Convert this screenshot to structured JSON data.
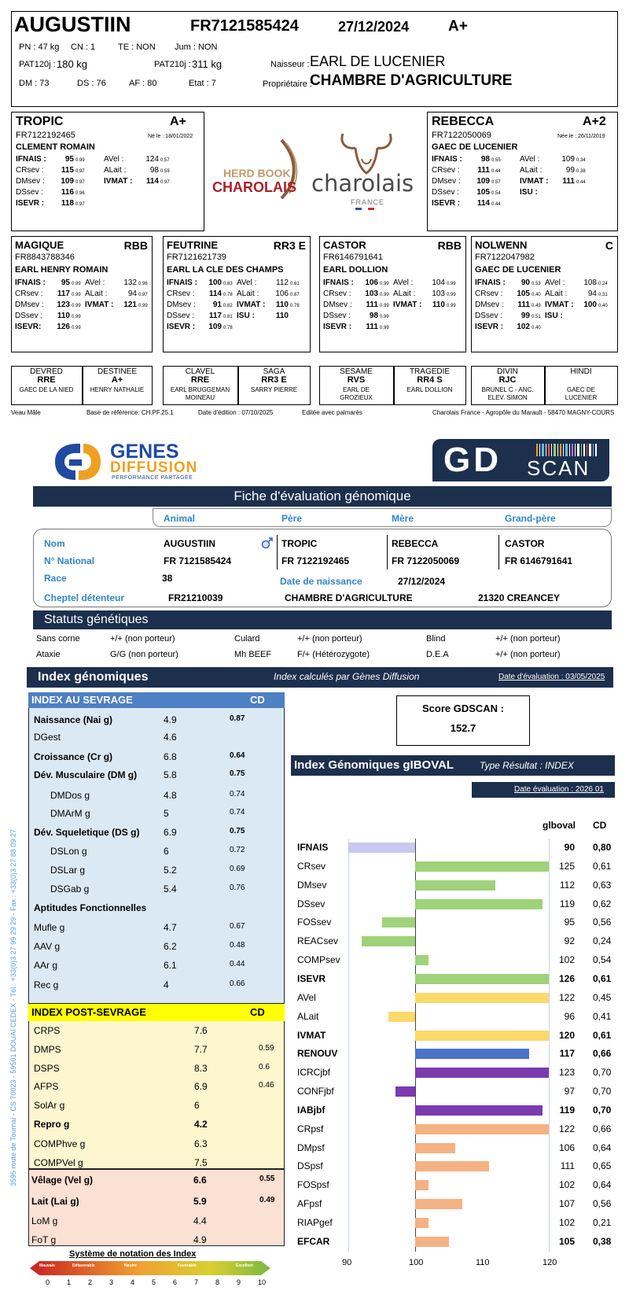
{
  "animal": {
    "name": "AUGUSTIIN",
    "national_id": "FR7121585424",
    "birth_date": "27/12/2024",
    "grade": "A+",
    "pn": "PN : 47 kg",
    "cn": "CN : 1",
    "te": "TE : NON",
    "jum": "Jum : NON",
    "pat120": "PAT120j :",
    "pat120_val": "180 kg",
    "pat210": "PAT210j :",
    "pat210_val": "311 kg",
    "naisseur_label": "Naisseur :",
    "naisseur": "EARL DE LUCENIER",
    "proprietaire_label": "Propriétaire :",
    "proprietaire": "CHAMBRE D'AGRICULTURE",
    "dm": "DM : 73",
    "ds": "DS : 76",
    "af": "AF :  80",
    "etat": "Etat : 7"
  },
  "parents": [
    {
      "key": "pere",
      "name": "TROPIC",
      "grade": "A+",
      "id": "FR7122192465",
      "born": "Né le : 18/01/2022",
      "owner": "CLEMENT ROMAIN",
      "left": [
        [
          "IFNAIS :",
          "95",
          "0.99",
          true
        ],
        [
          "CRsev :",
          "115",
          "0.97",
          false
        ],
        [
          "DMsev :",
          "109",
          "0.97",
          false
        ],
        [
          "DSsev :",
          "116",
          "0.96",
          false
        ],
        [
          "ISEVR :",
          "118",
          "0.97",
          true
        ]
      ],
      "right": [
        [
          "AVel :",
          "124",
          "0.57",
          false
        ],
        [
          "ALait :",
          "98",
          "0.59",
          false
        ],
        [
          "IVMAT :",
          "114",
          "0.97",
          true
        ]
      ]
    },
    {
      "key": "mere",
      "name": "REBECCA",
      "grade": "A+2",
      "id": "FR7122050069",
      "born": "Née le : 26/11/2019",
      "owner": "GAEC DE LUCENIER",
      "left": [
        [
          "IFNAIS :",
          "98",
          "0.55",
          true
        ],
        [
          "CRsev :",
          "111",
          "0.44",
          false
        ],
        [
          "DMsev :",
          "109",
          "0.57",
          false
        ],
        [
          "DSsev :",
          "105",
          "0.54",
          false
        ],
        [
          "ISEVR :",
          "114",
          "0.44",
          true
        ]
      ],
      "right": [
        [
          "AVel :",
          "109",
          "0.34",
          false
        ],
        [
          "ALait :",
          "99",
          "0.38",
          false
        ],
        [
          "IVMAT :",
          "111",
          "0.44",
          true
        ],
        [
          "ISU :",
          "",
          "",
          true
        ]
      ]
    }
  ],
  "grandparents": [
    {
      "name": "MAGIQUE",
      "grade": "RBB",
      "id": "FR8843788346",
      "owner": "EARL HENRY ROMAIN",
      "left": [
        [
          "IFNAIS :",
          "95",
          "0.99",
          true
        ],
        [
          "CRsev :",
          "117",
          "0.99",
          false
        ],
        [
          "DMsev :",
          "123",
          "0.99",
          false
        ],
        [
          "DSsev :",
          "110",
          "0.99",
          false
        ],
        [
          "ISEVR:",
          "126",
          "0.99",
          true
        ]
      ],
      "right": [
        [
          "AVel :",
          "132",
          "0.96",
          false
        ],
        [
          "ALait :",
          "94",
          "0.97",
          false
        ],
        [
          "IVMAT :",
          "121",
          "0.99",
          true
        ]
      ]
    },
    {
      "name": "FEUTRINE",
      "grade": "RR3 E",
      "id": "FR7121621739",
      "owner": "EARL LA CLE DES CHAMPS",
      "left": [
        [
          "IFNAIS :",
          "100",
          "0.83",
          true
        ],
        [
          "CRsev :",
          "114",
          "0.78",
          false
        ],
        [
          "DMsev :",
          "91",
          "0.82",
          false
        ],
        [
          "DSsev :",
          "117",
          "0.81",
          false
        ],
        [
          "ISEVR :",
          "109",
          "0.78",
          true
        ]
      ],
      "right": [
        [
          "AVel :",
          "112",
          "0.61",
          false
        ],
        [
          "ALait :",
          "106",
          "0.67",
          false
        ],
        [
          "IVMAT :",
          "110",
          "0.78",
          true
        ],
        [
          "ISU :",
          "110",
          "",
          true
        ]
      ]
    },
    {
      "name": "CASTOR",
      "grade": "RBB",
      "id": "FR6146791641",
      "owner": "EARL DOLLION",
      "left": [
        [
          "IFNAIS :",
          "106",
          "0.99",
          true
        ],
        [
          "CRsev :",
          "103",
          "0.99",
          false
        ],
        [
          "DMsev :",
          "111",
          "0.99",
          false
        ],
        [
          "DSsev :",
          "98",
          "0.99",
          false
        ],
        [
          "ISEVR :",
          "111",
          "0.99",
          true
        ]
      ],
      "right": [
        [
          "AVel :",
          "104",
          "0.99",
          false
        ],
        [
          "ALait :",
          "103",
          "0.99",
          false
        ],
        [
          "IVMAT :",
          "110",
          "0.99",
          true
        ]
      ]
    },
    {
      "name": "NOLWENN",
      "grade": "C",
      "id": "FR7122047982",
      "owner": "GAEC DE LUCENIER",
      "left": [
        [
          "IFNAIS :",
          "90",
          "0.53",
          true
        ],
        [
          "CRsev :",
          "105",
          "0.40",
          false
        ],
        [
          "DMsev :",
          "111",
          "0.49",
          false
        ],
        [
          "DSsev :",
          "99",
          "0.51",
          false
        ],
        [
          "ISEVR :",
          "102",
          "0.40",
          true
        ]
      ],
      "right": [
        [
          "AVel :",
          "108",
          "0.24",
          false
        ],
        [
          "ALait :",
          "94",
          "0.31",
          false
        ],
        [
          "IVMAT :",
          "100",
          "0.40",
          true
        ],
        [
          "ISU :",
          "",
          "",
          true
        ]
      ]
    }
  ],
  "great_grandparents": [
    {
      "name": "DEVRED",
      "race": "RRE",
      "owner": "GAEC DE LA NIED",
      "owner2": ""
    },
    {
      "name": "DESTINEE",
      "race": "A+",
      "owner": "HENRY NATHALIE",
      "owner2": ""
    },
    {
      "name": "CLAVEL",
      "race": "RRE",
      "owner": "EARL BRUGGEMAN",
      "owner2": "MOINEAU"
    },
    {
      "name": "SAGA",
      "race": "RR3 E",
      "owner": "SARRY PIERRE",
      "owner2": ""
    },
    {
      "name": "SESAME",
      "race": "RVS",
      "owner": "EARL DE",
      "owner2": "GROZIEUX"
    },
    {
      "name": "TRAGEDIE",
      "race": "RR4 S",
      "owner": "EARL DOLLION",
      "owner2": ""
    },
    {
      "name": "DIVIN",
      "race": "RJC",
      "owner": "BRUNEL C - ANC.",
      "owner2": "ELEV. SIMON"
    },
    {
      "name": "HINDI",
      "race": "",
      "owner": "GAEC DE",
      "owner2": "LUCENIER"
    }
  ],
  "footer_top": {
    "sex": "Veau Mâle",
    "base": "Base de référence: CH.PF.25.1",
    "edition": "Date d'édition : 07/10/2025",
    "palmares": "Editée avec palmarès",
    "address": "Charolais France - Agropôle du Marault - 58470 MAGNY-COURS"
  },
  "logos": {
    "herdbook_1": "HERD BOOK",
    "herdbook_2": "CHAROLAIS",
    "charolais": "charolais",
    "france": "FRANCE",
    "genes_1": "GENES",
    "genes_2": "DIFFUSION",
    "genes_3": "PERFORMANCE PARTAGÉE",
    "gd": "GD",
    "scan": "SCAN"
  },
  "fiche": {
    "title": "Fiche d'évaluation génomique",
    "tabs": [
      "Animal",
      "Père",
      "Mère",
      "Grand-père"
    ],
    "nom_label": "Nom",
    "nom": "AUGUSTIIN",
    "national_label": "N° National",
    "national": "FR 7121585424",
    "race_label": "Race",
    "race": "38",
    "cheptel_label": "Cheptel détenteur",
    "cheptel": "FR21210039",
    "pere_name": "TROPIC",
    "pere_id": "FR 7122192465",
    "mere_name": "REBECCA",
    "mere_id": "FR 7122050069",
    "gp_name": "CASTOR",
    "gp_id": "FR 6146791641",
    "dob_label": "Date de naissance",
    "dob": "27/12/2024",
    "owner": "CHAMBRE D'AGRICULTURE",
    "city": "21320 CREANCEY"
  },
  "statuts": {
    "title": "Statuts génétiques",
    "rows": [
      [
        "Sans corne",
        "+/+ (non porteur)",
        "Culard",
        "+/+ (non porteur)",
        "Blind",
        "+/+ (non porteur)"
      ],
      [
        "Ataxie",
        "G/G (non porteur)",
        "Mh BEEF",
        "F/+ (Hétérozygote)",
        "D.E.A",
        "+/+ (non porteur)"
      ]
    ]
  },
  "index_genomiques": {
    "title": "Index génomiques",
    "subtitle": "Index calculés par Gènes Diffusion",
    "eval_date": "Date d'évaluation : 03/05/2025"
  },
  "sevrage": {
    "header": "INDEX AU SEVRAGE",
    "cd": "CD",
    "rows": [
      [
        "Naissance (Nai g)",
        "4.9",
        "0.87",
        true,
        false
      ],
      [
        "DGest",
        "4.6",
        "",
        false,
        false
      ],
      [
        "Croissance (Cr g)",
        "6.8",
        "0.64",
        true,
        false
      ],
      [
        "Dév. Musculaire (DM g)",
        "5.8",
        "0.75",
        true,
        false
      ],
      [
        "DMDos g",
        "4.8",
        "0.74",
        false,
        true
      ],
      [
        "DMArM g",
        "5",
        "0.74",
        false,
        true
      ],
      [
        "Dév. Squeletique (DS g)",
        "6.9",
        "0.75",
        true,
        false
      ],
      [
        "DSLon g",
        "6",
        "0.72",
        false,
        true
      ],
      [
        "DSLar g",
        "5.2",
        "0.69",
        false,
        true
      ],
      [
        "DSGab g",
        "5.4",
        "0.76",
        false,
        true
      ],
      [
        "Aptitudes Fonctionnelles",
        "",
        "",
        true,
        false
      ],
      [
        "Mufle g",
        "4.7",
        "0.67",
        false,
        false
      ],
      [
        "AAV g",
        "6.2",
        "0.48",
        false,
        false
      ],
      [
        "AAr g",
        "6.1",
        "0.44",
        false,
        false
      ],
      [
        "Rec g",
        "4",
        "0.66",
        false,
        false
      ]
    ]
  },
  "post_sevrage": {
    "header": "INDEX POST-SEVRAGE",
    "cd": "CD",
    "rows": [
      [
        "CRPS",
        "7.6",
        "",
        false
      ],
      [
        "DMPS",
        "7.7",
        "0.59",
        false
      ],
      [
        "DSPS",
        "8.3",
        "0.6",
        false
      ],
      [
        "AFPS",
        "6.9",
        "0.46",
        false
      ],
      [
        "SolAr g",
        "6",
        "",
        false
      ],
      [
        "Repro g",
        "4.2",
        "",
        true
      ],
      [
        "COMPhve g",
        "6.3",
        "",
        false
      ],
      [
        "COMPVel g",
        "7.5",
        "",
        false
      ]
    ]
  },
  "maternal": {
    "rows": [
      [
        "Vêlage (Vel g)",
        "6.6",
        "0.55",
        true
      ],
      [
        "Lait (Lai g)",
        "5.9",
        "0.49",
        true
      ],
      [
        "LoM g",
        "4.4",
        "",
        false
      ],
      [
        "FoT g",
        "4.9",
        "",
        false
      ]
    ]
  },
  "notation": {
    "title": "Système de notation des Index",
    "labels": [
      "Mauvais",
      "Défavorable",
      "Neutre",
      "Favorable",
      "Excellent"
    ],
    "ticks": [
      "0",
      "1",
      "2",
      "3",
      "4",
      "5",
      "6",
      "7",
      "8",
      "9",
      "10"
    ]
  },
  "side_text": "3595 route de Tournai - CS 70023 - 59501 DOUAI CEDEX - Tél : +33(0)3 27 99 29 29 - Fax : +33(0)3 27 88 09 27",
  "score": {
    "label": "Score GDSCAN :",
    "value": "152.7"
  },
  "glboval": {
    "title": "Index Génomiques gIBOVAL",
    "type": "Type Résultat : INDEX",
    "eval_date": "Date évaluation : 2026 01",
    "col_value": "glboval",
    "col_cd": "CD"
  },
  "chart_data": {
    "type": "bar",
    "orientation": "horizontal",
    "xlim": [
      90,
      120
    ],
    "x_ticks": [
      "90",
      "100",
      "110",
      "120"
    ],
    "baseline": 100,
    "categories": [
      "IFNAIS",
      "CRsev",
      "DMsev",
      "DSsev",
      "FOSsev",
      "REACsev",
      "COMPsev",
      "ISEVR",
      "AVel",
      "ALait",
      "IVMAT",
      "RENOUV",
      "ICRCjbf",
      "CONFjbf",
      "IABjbf",
      "CRpsf",
      "DMpsf",
      "DSpsf",
      "FOSpsf",
      "AFpsf",
      "RIAPgef",
      "EFCAR"
    ],
    "values": [
      90,
      125,
      112,
      119,
      95,
      92,
      102,
      126,
      122,
      96,
      120,
      117,
      123,
      97,
      119,
      122,
      106,
      111,
      102,
      107,
      102,
      105
    ],
    "value_labels": [
      "90",
      "125",
      "112",
      "119",
      "95",
      "92",
      "102",
      "126",
      "122",
      "96",
      "120",
      "117",
      "123",
      "97",
      "119",
      "122",
      "106",
      "111",
      "102",
      "107",
      "102",
      "105"
    ],
    "cd": [
      "0,80",
      "0,61",
      "0,63",
      "0,62",
      "0,56",
      "0,24",
      "0,54",
      "0,61",
      "0,45",
      "0,41",
      "0,61",
      "0,66",
      "0,70",
      "0,70",
      "0,70",
      "0,66",
      "0,64",
      "0,65",
      "0,64",
      "0,56",
      "0,21",
      "0,38"
    ],
    "bold": [
      true,
      false,
      false,
      false,
      false,
      false,
      false,
      true,
      false,
      false,
      true,
      true,
      false,
      false,
      true,
      false,
      false,
      false,
      false,
      false,
      false,
      true
    ],
    "colors": [
      "#c8c8f0",
      "#9fd27a",
      "#9fd27a",
      "#9fd27a",
      "#9fd27a",
      "#9fd27a",
      "#9fd27a",
      "#9fd27a",
      "#fcd96b",
      "#fcd96b",
      "#fcd96b",
      "#4a72c8",
      "#7b3ab0",
      "#7b3ab0",
      "#7b3ab0",
      "#f4b283",
      "#f4b283",
      "#f4b283",
      "#f4b283",
      "#f4b283",
      "#f4b283",
      "#f4b283"
    ]
  }
}
